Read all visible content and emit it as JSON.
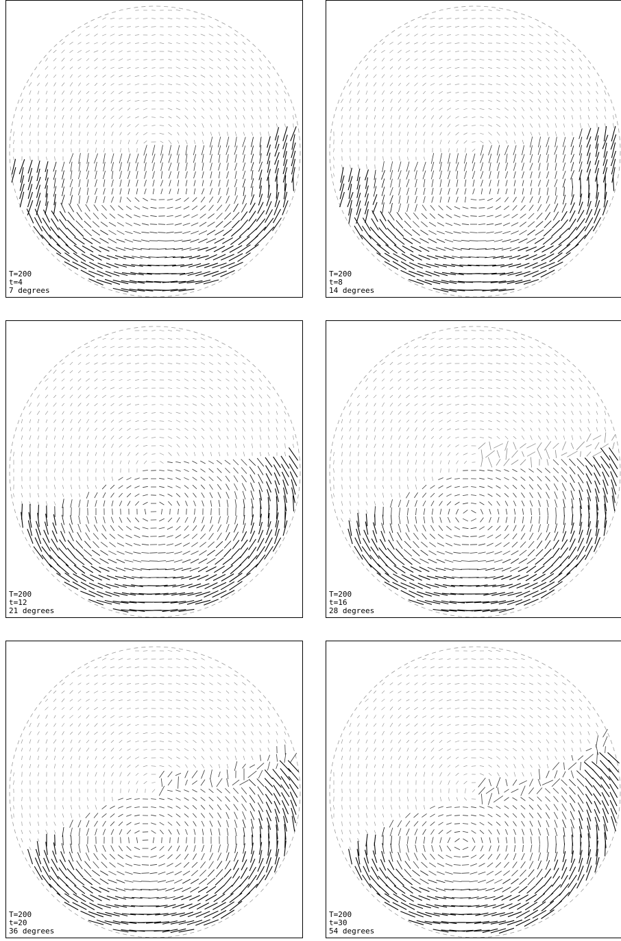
{
  "panels": [
    {
      "T": "T=200",
      "t": "t=4",
      "deg": "7 degrees",
      "angle": 7,
      "stage": 0
    },
    {
      "T": "T=200",
      "t": "t=8",
      "deg": "14 degrees",
      "angle": 14,
      "stage": 1
    },
    {
      "T": "T=200",
      "t": "t=12",
      "deg": "21 degrees",
      "angle": 21,
      "stage": 2
    },
    {
      "T": "T=200",
      "t": "t=16",
      "deg": "28 degrees",
      "angle": 28,
      "stage": 3
    },
    {
      "T": "T=200",
      "t": "t=20",
      "deg": "36 degrees",
      "angle": 36,
      "stage": 4
    },
    {
      "T": "T=200",
      "t": "t=30",
      "deg": "54 degrees",
      "angle": 54,
      "stage": 5
    }
  ],
  "colors": {
    "strong": "#000000",
    "medium": "#333333",
    "faint": "#888888"
  }
}
